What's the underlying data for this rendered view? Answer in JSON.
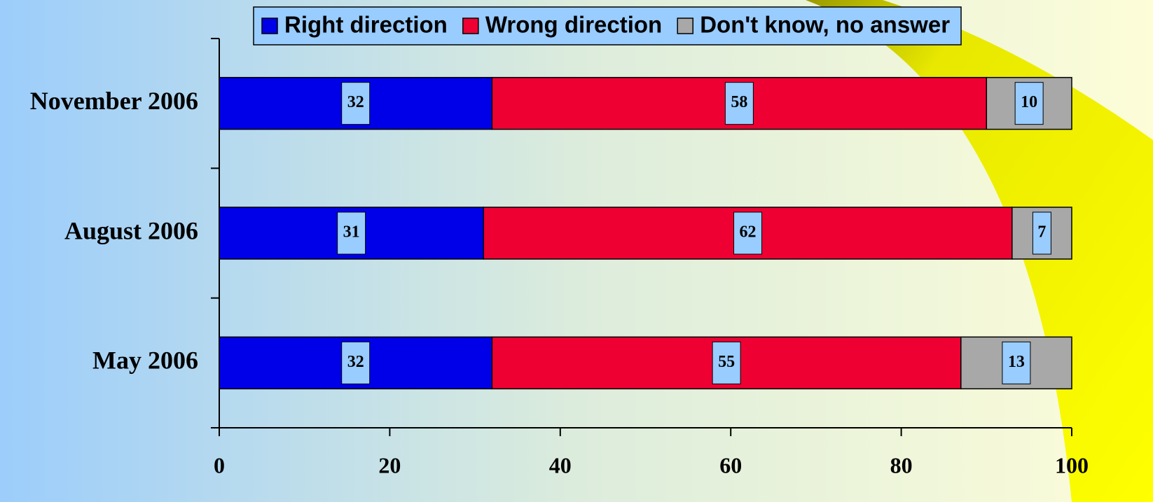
{
  "chart_data": {
    "type": "bar",
    "orientation": "horizontal",
    "stacked": true,
    "categories": [
      "November 2006",
      "August 2006",
      "May 2006"
    ],
    "series": [
      {
        "name": "Right direction",
        "color": "#0000e8",
        "values": [
          32,
          31,
          32
        ]
      },
      {
        "name": "Wrong direction",
        "color": "#ee0033",
        "values": [
          58,
          62,
          55
        ]
      },
      {
        "name": "Don't know, no answer",
        "color": "#a8a8a8",
        "values": [
          10,
          7,
          13
        ]
      }
    ],
    "xlim": [
      0,
      100
    ],
    "xticks": [
      0,
      20,
      40,
      60,
      80,
      100
    ],
    "legend": "top",
    "data_labels": true
  }
}
